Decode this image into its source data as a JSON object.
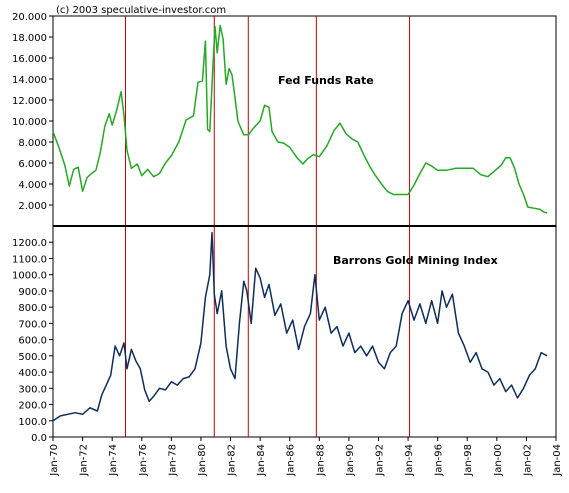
{
  "copyright": "(c) 2003 speculative-investor.com",
  "colors": {
    "fed_line": "#22aa22",
    "gold_line": "#0d2d5e",
    "event_line": "#cc0000",
    "divider": "#000000"
  },
  "chart_data": [
    {
      "type": "line",
      "title": "Fed Funds Rate",
      "xlabel": "",
      "ylabel": "",
      "ylim": [
        0,
        20
      ],
      "yticks": [
        "20.000",
        "18.000",
        "16.000",
        "14.000",
        "12.000",
        "10.000",
        "8.000",
        "6.000",
        "4.000",
        "2.000"
      ],
      "ytick_values": [
        20,
        18,
        16,
        14,
        12,
        10,
        8,
        6,
        4,
        2
      ],
      "grid": false,
      "series": [
        {
          "name": "Fed Funds Rate",
          "x": [
            1970.0,
            1970.4,
            1970.8,
            1971.1,
            1971.4,
            1971.7,
            1972.0,
            1972.3,
            1972.6,
            1972.9,
            1973.2,
            1973.5,
            1973.8,
            1974.0,
            1974.3,
            1974.6,
            1974.8,
            1975.0,
            1975.3,
            1975.7,
            1976.0,
            1976.4,
            1976.8,
            1977.2,
            1977.6,
            1978.0,
            1978.5,
            1979.0,
            1979.5,
            1979.8,
            1980.1,
            1980.3,
            1980.45,
            1980.6,
            1980.8,
            1980.95,
            1981.1,
            1981.3,
            1981.5,
            1981.7,
            1981.9,
            1982.1,
            1982.3,
            1982.5,
            1982.7,
            1982.9,
            1983.2,
            1983.6,
            1984.0,
            1984.3,
            1984.6,
            1984.8,
            1985.2,
            1985.6,
            1986.0,
            1986.5,
            1986.9,
            1987.2,
            1987.6,
            1988.0,
            1988.5,
            1989.0,
            1989.4,
            1989.8,
            1990.2,
            1990.6,
            1991.0,
            1991.4,
            1991.8,
            1992.2,
            1992.6,
            1993.0,
            1993.5,
            1994.0,
            1994.4,
            1994.8,
            1995.2,
            1995.6,
            1996.0,
            1996.6,
            1997.2,
            1997.8,
            1998.4,
            1998.9,
            1999.4,
            1999.9,
            2000.3,
            2000.6,
            2000.9,
            2001.2,
            2001.5,
            2001.8,
            2002.1,
            2002.5,
            2002.9,
            2003.2,
            2003.4
          ],
          "values": [
            8.98,
            7.5,
            5.8,
            3.8,
            5.4,
            5.6,
            3.3,
            4.6,
            5.0,
            5.3,
            7.0,
            9.5,
            10.7,
            9.6,
            11.0,
            12.8,
            10.5,
            7.2,
            5.5,
            5.9,
            4.8,
            5.4,
            4.7,
            5.0,
            6.0,
            6.7,
            8.0,
            10.1,
            10.5,
            13.7,
            13.8,
            17.6,
            9.2,
            9.0,
            15.0,
            19.0,
            16.5,
            19.1,
            17.8,
            13.5,
            15.0,
            14.4,
            12.2,
            10.0,
            9.3,
            8.7,
            8.7,
            9.4,
            10.0,
            11.5,
            11.3,
            9.0,
            8.0,
            7.9,
            7.5,
            6.5,
            5.9,
            6.4,
            6.8,
            6.6,
            7.6,
            9.1,
            9.8,
            8.8,
            8.3,
            8.0,
            6.8,
            5.7,
            4.8,
            4.0,
            3.3,
            3.0,
            3.0,
            3.0,
            3.9,
            5.0,
            6.0,
            5.7,
            5.3,
            5.3,
            5.5,
            5.5,
            5.5,
            4.9,
            4.7,
            5.3,
            5.8,
            6.5,
            6.5,
            5.5,
            4.0,
            3.0,
            1.8,
            1.7,
            1.6,
            1.3,
            1.25
          ]
        }
      ]
    },
    {
      "type": "line",
      "title": "Barrons Gold Mining Index",
      "xlabel": "",
      "ylabel": "",
      "ylim": [
        0,
        1300
      ],
      "yticks": [
        "1200.0",
        "1100.0",
        "1000.0",
        "900.0",
        "800.0",
        "700.0",
        "600.0",
        "500.0",
        "400.0",
        "300.0",
        "200.0",
        "100.0",
        "0.0"
      ],
      "ytick_values": [
        1200,
        1100,
        1000,
        900,
        800,
        700,
        600,
        500,
        400,
        300,
        200,
        100,
        0
      ],
      "xlim": [
        1970,
        2004
      ],
      "xticks": [
        "Jan-70",
        "Jan-72",
        "Jan-74",
        "Jan-76",
        "Jan-78",
        "Jan-80",
        "Jan-82",
        "Jan-84",
        "Jan-86",
        "Jan-88",
        "Jan-90",
        "Jan-92",
        "Jan-94",
        "Jan-96",
        "Jan-98",
        "Jan-00",
        "Jan-02",
        "Jan-04"
      ],
      "xtick_values": [
        1970,
        1972,
        1974,
        1976,
        1978,
        1980,
        1982,
        1984,
        1986,
        1988,
        1990,
        1992,
        1994,
        1996,
        1998,
        2000,
        2002,
        2004
      ],
      "grid": false,
      "series": [
        {
          "name": "Barrons Gold Mining Index",
          "x": [
            1970.0,
            1970.5,
            1971.0,
            1971.5,
            1972.0,
            1972.5,
            1973.0,
            1973.3,
            1973.6,
            1973.9,
            1974.2,
            1974.5,
            1974.8,
            1975.0,
            1975.3,
            1975.6,
            1975.9,
            1976.2,
            1976.5,
            1976.8,
            1977.2,
            1977.6,
            1978.0,
            1978.4,
            1978.8,
            1979.2,
            1979.6,
            1980.0,
            1980.3,
            1980.6,
            1980.75,
            1980.9,
            1981.1,
            1981.4,
            1981.7,
            1982.0,
            1982.3,
            1982.6,
            1982.9,
            1983.1,
            1983.4,
            1983.7,
            1984.0,
            1984.3,
            1984.6,
            1985.0,
            1985.4,
            1985.8,
            1986.2,
            1986.6,
            1987.0,
            1987.4,
            1987.7,
            1988.0,
            1988.4,
            1988.8,
            1989.2,
            1989.6,
            1990.0,
            1990.4,
            1990.8,
            1991.2,
            1991.6,
            1992.0,
            1992.4,
            1992.8,
            1993.2,
            1993.6,
            1994.0,
            1994.4,
            1994.8,
            1995.2,
            1995.6,
            1996.0,
            1996.3,
            1996.6,
            1997.0,
            1997.4,
            1997.8,
            1998.2,
            1998.6,
            1999.0,
            1999.4,
            1999.8,
            2000.2,
            2000.6,
            2001.0,
            2001.4,
            2001.8,
            2002.2,
            2002.6,
            2003.0,
            2003.4
          ],
          "values": [
            100,
            130,
            140,
            150,
            140,
            180,
            160,
            260,
            320,
            380,
            560,
            500,
            580,
            420,
            540,
            470,
            420,
            290,
            220,
            250,
            300,
            290,
            340,
            320,
            360,
            370,
            420,
            580,
            860,
            1000,
            1260,
            880,
            760,
            900,
            560,
            420,
            360,
            700,
            960,
            900,
            700,
            1040,
            980,
            860,
            940,
            750,
            820,
            640,
            720,
            540,
            680,
            760,
            1000,
            720,
            800,
            640,
            680,
            560,
            640,
            520,
            560,
            500,
            560,
            460,
            420,
            520,
            560,
            760,
            840,
            720,
            820,
            700,
            840,
            700,
            900,
            800,
            880,
            640,
            560,
            460,
            520,
            420,
            400,
            320,
            360,
            280,
            320,
            240,
            300,
            380,
            420,
            520,
            500
          ]
        }
      ]
    }
  ],
  "event_lines_x": [
    1974.9,
    1980.9,
    1983.2,
    1987.8,
    1994.1
  ]
}
